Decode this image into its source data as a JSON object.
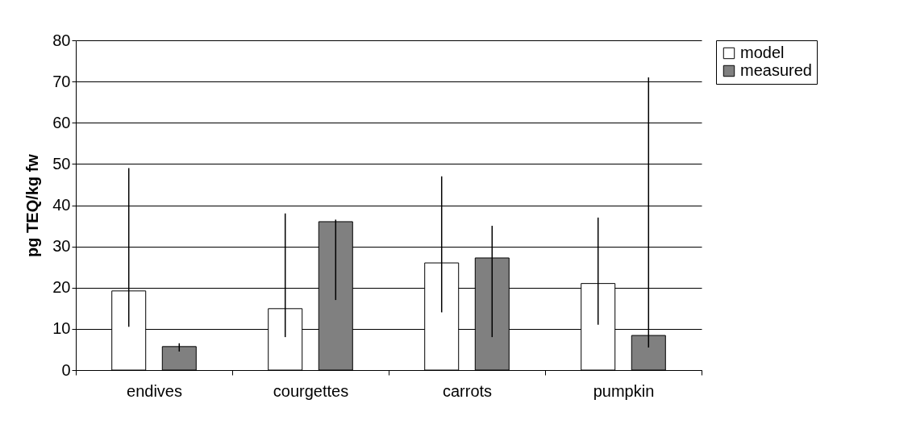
{
  "chart_data": {
    "type": "bar",
    "ylabel": "pg TEQ/kg fw",
    "categories": [
      "endives",
      "courgettes",
      "carrots",
      "pumpkin"
    ],
    "series": [
      {
        "name": "model",
        "color": "#ffffff",
        "values": [
          19.2,
          14.9,
          26,
          21
        ],
        "errors": [
          [
            10.5,
            49
          ],
          [
            8,
            38
          ],
          [
            14,
            47
          ],
          [
            11,
            37
          ]
        ]
      },
      {
        "name": "measured",
        "color": "#808080",
        "values": [
          5.7,
          36,
          27.2,
          8.4
        ],
        "errors": [
          [
            4.5,
            6.5
          ],
          [
            17,
            36.5
          ],
          [
            8,
            35
          ],
          [
            5.5,
            71
          ]
        ]
      }
    ],
    "ylim": [
      0,
      80
    ],
    "yticks": [
      0,
      10,
      20,
      30,
      40,
      50,
      60,
      70,
      80
    ],
    "grid": "y",
    "legend": "right"
  }
}
